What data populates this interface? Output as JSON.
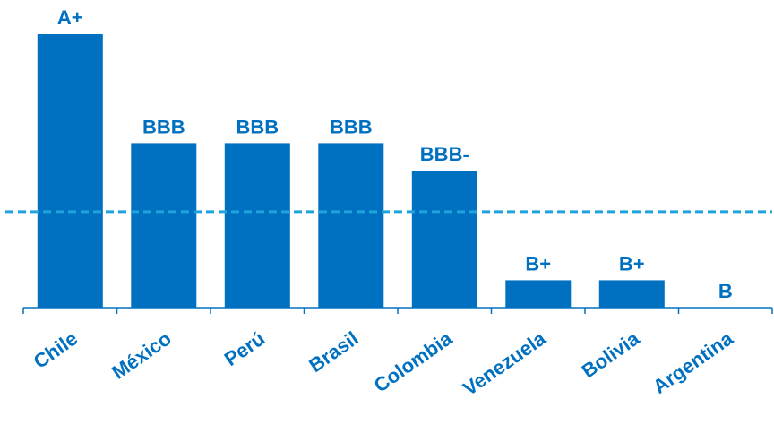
{
  "chart_data": {
    "type": "bar",
    "categories": [
      "Chile",
      "México",
      "Perú",
      "Brasil",
      "Colombia",
      "Venezuela",
      "Bolivia",
      "Argentina"
    ],
    "values": [
      7,
      5,
      5,
      5,
      4.5,
      2.5,
      2.5,
      2
    ],
    "data_labels": [
      "A+",
      "BBB",
      "BBB",
      "BBB",
      "BBB-",
      "B+",
      "B+",
      "B"
    ],
    "reference_line": {
      "value": 3.75,
      "style": "dashed"
    },
    "ylim": [
      2,
      7.5
    ],
    "title": "",
    "xlabel": "",
    "ylabel": "",
    "grid": false,
    "legend": "none",
    "colors": {
      "bar": "#0070C0",
      "text": "#0070C0",
      "reference_line": "#1FA3DC"
    }
  }
}
